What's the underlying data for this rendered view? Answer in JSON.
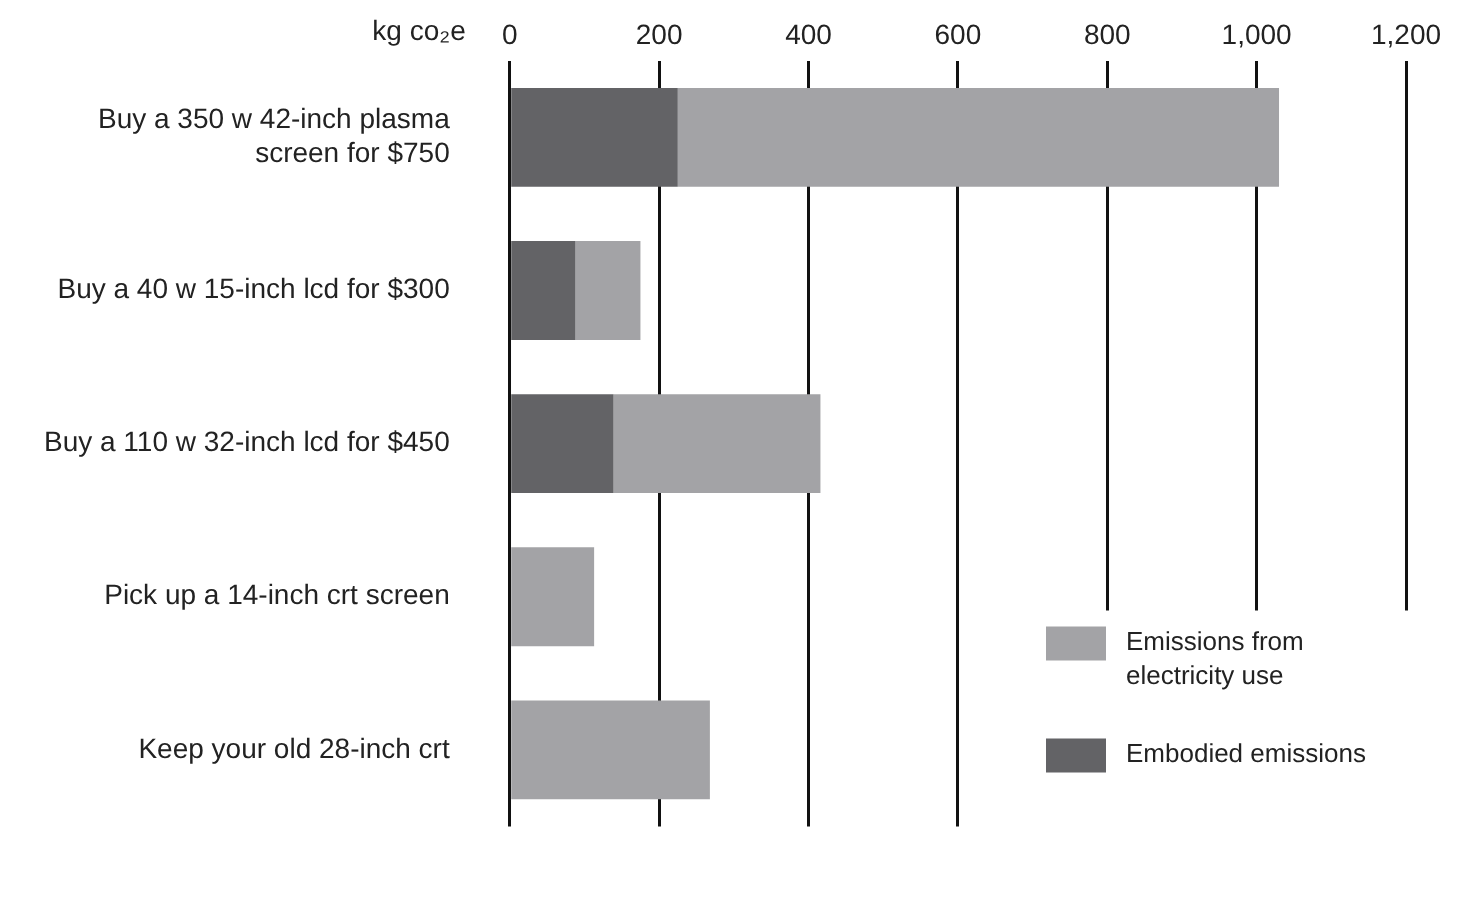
{
  "chart_data": {
    "type": "bar",
    "orientation": "horizontal",
    "stacked": true,
    "xlabel": "kg co₂e",
    "categories": [
      "Buy a 350 w 42-inch plasma screen for $750",
      "Buy a 40 w 15-inch lcd for $300",
      "Buy a 110 w 32-inch lcd for $450",
      "Pick up a 14-inch crt screen",
      "Keep your old 28-inch crt"
    ],
    "series": [
      {
        "name": "Embodied emissions",
        "color": "#636366",
        "values": [
          225,
          88,
          139,
          0,
          0
        ]
      },
      {
        "name": "Emissions from electricity use",
        "color": "#a3a3a6",
        "values": [
          805,
          87,
          277,
          113,
          268
        ]
      }
    ],
    "xlim": [
      0,
      1200
    ],
    "xticks": [
      0,
      {
        "value": 200,
        "label": "200"
      },
      {
        "value": 400,
        "label": "400"
      },
      {
        "value": 600,
        "label": "600"
      },
      {
        "value": 800,
        "label": "800"
      },
      {
        "value": 1000,
        "label": "1,000"
      },
      {
        "value": 1200,
        "label": "1,200"
      }
    ],
    "grid": "x",
    "legend": "bottom right"
  }
}
